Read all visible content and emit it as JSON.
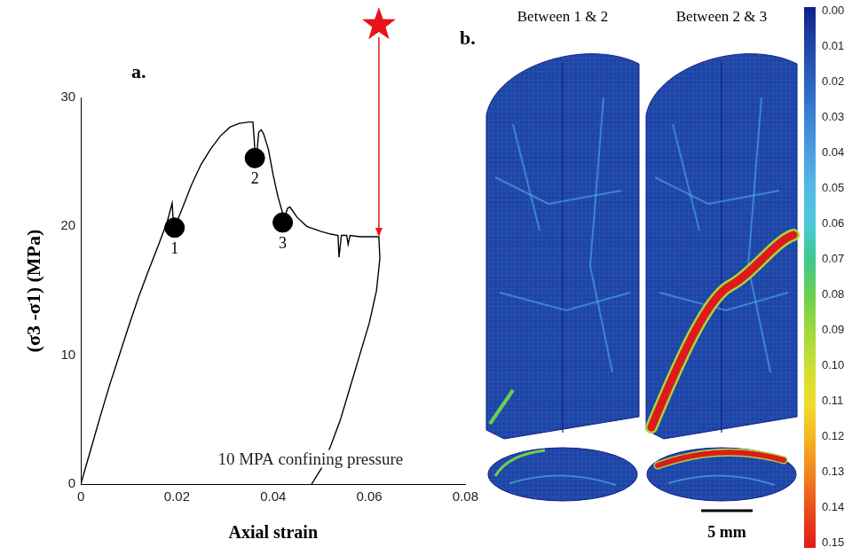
{
  "chart_data": {
    "type": "line",
    "panel_label": "a.",
    "x_label": "Axial strain",
    "y_label": "(σ3 -σ1) (MPa)",
    "color": "#000000",
    "x": [
      0,
      0.002,
      0.004,
      0.006,
      0.008,
      0.01,
      0.012,
      0.014,
      0.016,
      0.018,
      0.019,
      0.0192,
      0.0195,
      0.0198,
      0.021,
      0.023,
      0.025,
      0.027,
      0.029,
      0.031,
      0.033,
      0.035,
      0.0358,
      0.0362,
      0.0366,
      0.037,
      0.0375,
      0.038,
      0.039,
      0.04,
      0.041,
      0.042,
      0.0425,
      0.043,
      0.0435,
      0.045,
      0.047,
      0.05,
      0.052,
      0.0535,
      0.0537,
      0.0542,
      0.0553,
      0.0556,
      0.056,
      0.058,
      0.06,
      0.062,
      0.0622,
      0.0615,
      0.06,
      0.058,
      0.056,
      0.054,
      0.052,
      0.05,
      0.048
    ],
    "values": [
      0,
      2.6,
      5.2,
      7.7,
      10,
      12.3,
      14.5,
      16.5,
      18.4,
      20.4,
      21.8,
      20.5,
      19.8,
      20.2,
      21.3,
      23.2,
      24.8,
      26,
      27,
      27.7,
      28,
      28.1,
      28.1,
      26,
      25.6,
      27.3,
      27.5,
      27.2,
      26,
      24,
      22.3,
      21,
      20.8,
      21.4,
      21.5,
      20.7,
      20,
      19.6,
      19.4,
      19.3,
      17.6,
      19.3,
      19.3,
      18.6,
      19.3,
      19.2,
      19.2,
      19.2,
      17.5,
      15,
      12.5,
      10,
      7.5,
      5,
      3,
      1.2,
      0
    ],
    "markers": {
      "x": [
        0.0195,
        0.0362,
        0.042
      ],
      "y": [
        19.9,
        25.3,
        20.3
      ],
      "labels": [
        "1",
        "2",
        "3"
      ],
      "marker": "circle",
      "color": "#000000"
    },
    "arrow": {
      "x": 0.062,
      "y": 19.2,
      "marker": "star",
      "color": "#e8141c"
    },
    "annotations": [
      {
        "text": "10 MPA confining pressure",
        "x": 0.0285,
        "y": 1.2
      }
    ],
    "xlim": [
      0,
      0.08
    ],
    "xticks": [
      0,
      0.02,
      0.04,
      0.06,
      0.08
    ],
    "ylim": [
      0,
      30
    ],
    "yticks": [
      0,
      10,
      20,
      30
    ],
    "grid": false
  },
  "panel_b": {
    "panel_label": "b.",
    "panels": [
      {
        "title": "Between 1 & 2"
      },
      {
        "title": "Between 2 & 3"
      }
    ],
    "scale_bar": "5 mm",
    "colorbar": {
      "range": [
        0,
        0.15
      ],
      "ticks": [
        {
          "value": 0,
          "label": "0.00"
        },
        {
          "value": 0.01,
          "label": "0.01"
        },
        {
          "value": 0.02,
          "label": "0.02"
        },
        {
          "value": 0.03,
          "label": "0.03"
        },
        {
          "value": 0.04,
          "label": "0.04"
        },
        {
          "value": 0.05,
          "label": "0.05"
        },
        {
          "value": 0.06,
          "label": "0.06"
        },
        {
          "value": 0.07,
          "label": "0.07"
        },
        {
          "value": 0.08,
          "label": "0.08"
        },
        {
          "value": 0.09,
          "label": "0.09"
        },
        {
          "value": 0.1,
          "label": "0.10"
        },
        {
          "value": 0.11,
          "label": "0.11"
        },
        {
          "value": 0.12,
          "label": "0.12"
        },
        {
          "value": 0.13,
          "label": "0.13"
        },
        {
          "value": 0.14,
          "label": "0.14"
        },
        {
          "value": 0.15,
          "label": "0.15"
        }
      ],
      "colors": [
        "#0f1f8a",
        "#1f44a6",
        "#2a62bd",
        "#3a80d2",
        "#4a9ee0",
        "#55b8e8",
        "#4ccad8",
        "#3ec88e",
        "#6ccf4f",
        "#a3d83c",
        "#cde033",
        "#f0dc2b",
        "#f5b323",
        "#f28020",
        "#ea4a1c",
        "#e0191b"
      ]
    }
  }
}
